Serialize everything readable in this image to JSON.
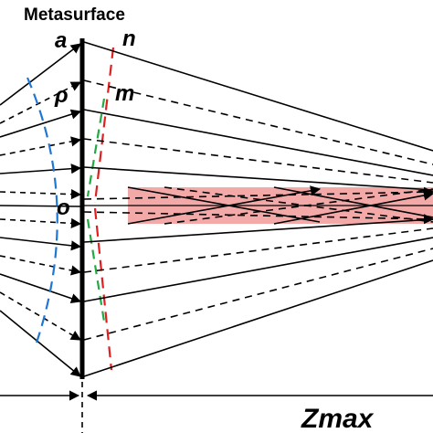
{
  "labels": {
    "metasurface": "Metasurface",
    "a": "a",
    "n": "n",
    "rho": "ρ",
    "m": "m",
    "o": "o",
    "zmax": "Zmax"
  },
  "colors": {
    "line": "#000000",
    "blue_dash": "#1f77d4",
    "red_dash": "#e02020",
    "green_dash": "#22aa44",
    "highlight": "#f08c8c"
  }
}
